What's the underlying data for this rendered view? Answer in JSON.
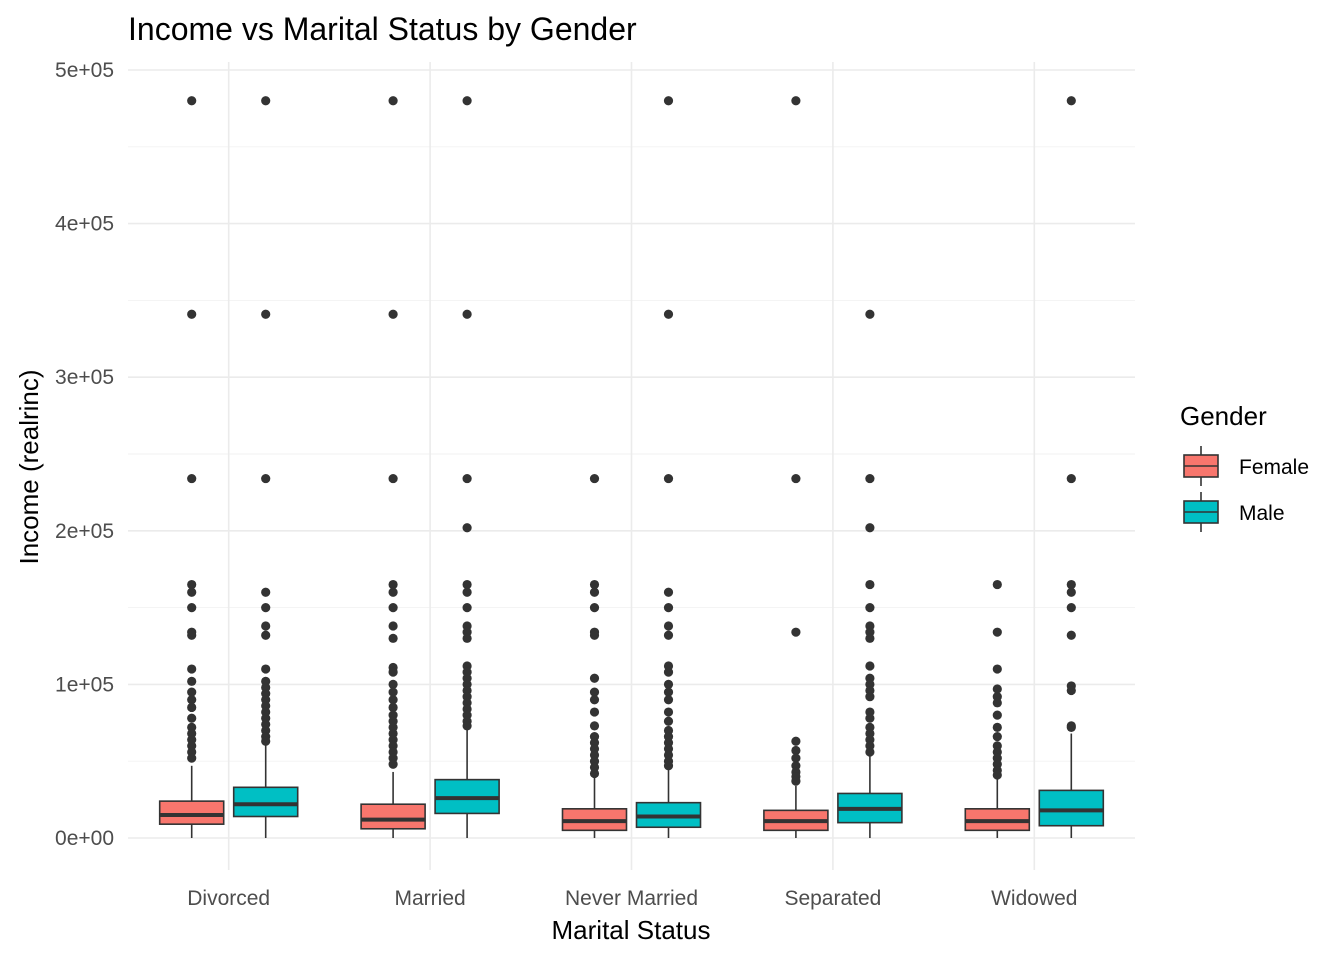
{
  "chart_data": {
    "type": "boxplot",
    "title": "Income vs Marital Status by Gender",
    "xlabel": "Marital Status",
    "ylabel": "Income (realrinc)",
    "ylim": [
      -20000,
      505000
    ],
    "yticks": [
      0,
      100000,
      200000,
      300000,
      400000,
      500000
    ],
    "ytick_labels": [
      "0e+00",
      "1e+05",
      "2e+05",
      "3e+05",
      "4e+05",
      "5e+05"
    ],
    "grid": true,
    "categories": [
      "Divorced",
      "Married",
      "Never Married",
      "Separated",
      "Widowed"
    ],
    "legend": {
      "title": "Gender",
      "position": "right",
      "entries": [
        {
          "name": "Female",
          "color": "#F8766D"
        },
        {
          "name": "Male",
          "color": "#00BFC4"
        }
      ]
    },
    "series": [
      {
        "name": "Female",
        "color": "#F8766D",
        "boxes": [
          {
            "category": "Divorced",
            "min": 0,
            "q1": 9000,
            "median": 15000,
            "q3": 24000,
            "max": 47000,
            "outliers": [
              480000,
              341000,
              234000,
              165000,
              160000,
              150000,
              134000,
              132000,
              110000,
              102000,
              95000,
              90000,
              85000,
              78000,
              72000,
              68000,
              64000,
              60000,
              56000,
              52000
            ]
          },
          {
            "category": "Married",
            "min": 0,
            "q1": 6000,
            "median": 12000,
            "q3": 22000,
            "max": 43000,
            "outliers": [
              480000,
              341000,
              234000,
              165000,
              160000,
              150000,
              138000,
              130000,
              111000,
              108000,
              100000,
              95000,
              90000,
              85000,
              80000,
              76000,
              72000,
              68000,
              64000,
              60000,
              56000,
              52000,
              48000
            ]
          },
          {
            "category": "Never Married",
            "min": 0,
            "q1": 5000,
            "median": 11000,
            "q3": 19000,
            "max": 40000,
            "outliers": [
              234000,
              165000,
              160000,
              150000,
              134000,
              132000,
              104000,
              95000,
              90000,
              82000,
              73000,
              66000,
              62000,
              58000,
              54000,
              50000,
              46000,
              42000
            ]
          },
          {
            "category": "Separated",
            "min": 0,
            "q1": 5000,
            "median": 11000,
            "q3": 18000,
            "max": 34000,
            "outliers": [
              480000,
              234000,
              134000,
              63000,
              57000,
              52000,
              47000,
              43000,
              40000,
              37000
            ]
          },
          {
            "category": "Widowed",
            "min": 0,
            "q1": 5000,
            "median": 11000,
            "q3": 19000,
            "max": 39000,
            "outliers": [
              165000,
              134000,
              110000,
              97000,
              92000,
              88000,
              80000,
              72000,
              66000,
              60000,
              56000,
              52000,
              48000,
              44000,
              41000
            ]
          }
        ]
      },
      {
        "name": "Male",
        "color": "#00BFC4",
        "boxes": [
          {
            "category": "Divorced",
            "min": 0,
            "q1": 14000,
            "median": 22000,
            "q3": 33000,
            "max": 62000,
            "outliers": [
              480000,
              341000,
              234000,
              160000,
              150000,
              138000,
              132000,
              110000,
              102000,
              98000,
              94000,
              90000,
              86000,
              82000,
              78000,
              74000,
              70000,
              66000,
              63000
            ]
          },
          {
            "category": "Married",
            "min": 0,
            "q1": 16000,
            "median": 26000,
            "q3": 38000,
            "max": 72000,
            "outliers": [
              480000,
              341000,
              234000,
              202000,
              165000,
              160000,
              150000,
              138000,
              134000,
              130000,
              112000,
              108000,
              104000,
              100000,
              96000,
              92000,
              88000,
              84000,
              80000,
              76000,
              73000
            ]
          },
          {
            "category": "Never Married",
            "min": 0,
            "q1": 7000,
            "median": 14000,
            "q3": 23000,
            "max": 46000,
            "outliers": [
              480000,
              341000,
              234000,
              160000,
              150000,
              138000,
              132000,
              112000,
              108000,
              100000,
              95000,
              90000,
              82000,
              76000,
              70000,
              66000,
              62000,
              58000,
              54000,
              50000,
              47000
            ]
          },
          {
            "category": "Separated",
            "min": 0,
            "q1": 10000,
            "median": 19000,
            "q3": 29000,
            "max": 54000,
            "outliers": [
              341000,
              234000,
              202000,
              165000,
              150000,
              138000,
              134000,
              130000,
              112000,
              104000,
              100000,
              96000,
              92000,
              82000,
              78000,
              72000,
              68000,
              64000,
              60000,
              56000
            ]
          },
          {
            "category": "Widowed",
            "min": 0,
            "q1": 8000,
            "median": 18000,
            "q3": 31000,
            "max": 68000,
            "outliers": [
              480000,
              234000,
              165000,
              160000,
              150000,
              132000,
              99000,
              96000,
              73000,
              72000
            ]
          }
        ]
      }
    ]
  }
}
